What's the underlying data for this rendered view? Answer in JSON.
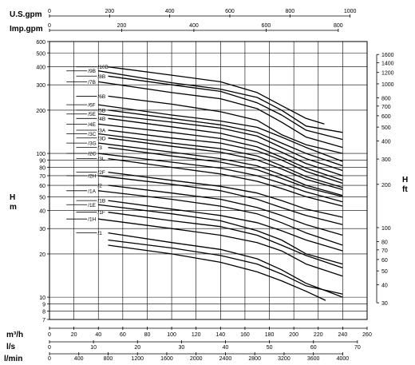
{
  "chart_data": {
    "type": "line",
    "log_scale": {
      "y_left": true,
      "y_right": true
    },
    "grid": true,
    "top_axes": [
      {
        "label": "U.S.gpm",
        "ticks": [
          0,
          200,
          400,
          600,
          800,
          1000
        ],
        "range": [
          0,
          1056.7
        ]
      },
      {
        "label": "Imp.gpm",
        "ticks": [
          0,
          200,
          400,
          600,
          800
        ],
        "range": [
          0,
          879.9
        ]
      }
    ],
    "bottom_axes": [
      {
        "label": "m³/h",
        "ticks": [
          0,
          20,
          40,
          60,
          80,
          100,
          120,
          140,
          160,
          180,
          200,
          220,
          240,
          260
        ],
        "range": [
          0,
          260
        ]
      },
      {
        "label": "l/s",
        "ticks": [
          0,
          10,
          20,
          30,
          40,
          50,
          60,
          70
        ],
        "range": [
          0,
          72.2
        ]
      },
      {
        "label": "l/min",
        "ticks": [
          0,
          400,
          800,
          1200,
          1600,
          2000,
          2400,
          2800,
          3200,
          3600,
          4000
        ],
        "range": [
          0,
          4333
        ]
      }
    ],
    "y_left": {
      "label": "H\nm",
      "ticks": [
        7,
        8,
        9,
        10,
        20,
        30,
        40,
        50,
        60,
        70,
        80,
        90,
        100,
        200,
        300,
        400,
        500,
        600
      ],
      "range": [
        7,
        600
      ]
    },
    "y_right": {
      "label": "H\nft",
      "ticks": [
        30,
        40,
        50,
        60,
        70,
        80,
        100,
        200,
        300,
        400,
        500,
        600,
        700,
        800,
        1000,
        1200,
        1400,
        1600
      ],
      "range": [
        22.97,
        1968.5
      ]
    },
    "series": [
      {
        "name": "/10B",
        "points": [
          [
            48,
            400
          ],
          [
            100,
            350
          ],
          [
            140,
            315
          ],
          [
            170,
            265
          ],
          [
            190,
            215
          ],
          [
            210,
            175
          ],
          [
            225,
            160
          ]
        ]
      },
      {
        "name": "/9B",
        "points": [
          [
            40,
            375
          ],
          [
            100,
            310
          ],
          [
            140,
            280
          ],
          [
            170,
            245
          ],
          [
            190,
            200
          ],
          [
            210,
            155
          ],
          [
            240,
            140
          ]
        ]
      },
      {
        "name": "/8B",
        "points": [
          [
            48,
            345
          ],
          [
            100,
            300
          ],
          [
            140,
            270
          ],
          [
            170,
            225
          ],
          [
            190,
            185
          ],
          [
            210,
            145
          ],
          [
            240,
            125
          ]
        ]
      },
      {
        "name": "/7B",
        "points": [
          [
            40,
            315
          ],
          [
            100,
            265
          ],
          [
            140,
            240
          ],
          [
            170,
            205
          ],
          [
            190,
            165
          ],
          [
            210,
            130
          ],
          [
            240,
            110
          ]
        ]
      },
      {
        "name": "/6B",
        "points": [
          [
            48,
            250
          ],
          [
            100,
            220
          ],
          [
            140,
            195
          ],
          [
            170,
            170
          ],
          [
            190,
            135
          ],
          [
            210,
            115
          ],
          [
            240,
            100
          ]
        ]
      },
      {
        "name": "/6F",
        "points": [
          [
            40,
            218
          ],
          [
            100,
            185
          ],
          [
            140,
            168
          ],
          [
            170,
            152
          ],
          [
            190,
            130
          ],
          [
            210,
            110
          ],
          [
            240,
            88
          ]
        ]
      },
      {
        "name": "/5B",
        "points": [
          [
            48,
            200
          ],
          [
            100,
            175
          ],
          [
            140,
            158
          ],
          [
            170,
            140
          ],
          [
            190,
            118
          ],
          [
            210,
            100
          ],
          [
            240,
            82
          ]
        ]
      },
      {
        "name": "/5E",
        "points": [
          [
            40,
            188
          ],
          [
            100,
            165
          ],
          [
            140,
            150
          ],
          [
            170,
            132
          ],
          [
            190,
            110
          ],
          [
            210,
            92
          ],
          [
            240,
            76
          ]
        ]
      },
      {
        "name": "/4B",
        "points": [
          [
            48,
            175
          ],
          [
            100,
            153
          ],
          [
            140,
            138
          ],
          [
            170,
            120
          ],
          [
            190,
            102
          ],
          [
            210,
            85
          ],
          [
            240,
            70
          ]
        ]
      },
      {
        "name": "/4E",
        "points": [
          [
            40,
            160
          ],
          [
            100,
            140
          ],
          [
            140,
            127
          ],
          [
            170,
            111
          ],
          [
            190,
            94
          ],
          [
            210,
            79
          ],
          [
            240,
            65
          ]
        ]
      },
      {
        "name": "/3A",
        "points": [
          [
            48,
            145
          ],
          [
            100,
            128
          ],
          [
            140,
            118
          ],
          [
            170,
            104
          ],
          [
            190,
            90
          ],
          [
            210,
            75
          ],
          [
            240,
            62
          ]
        ]
      },
      {
        "name": "/3C",
        "points": [
          [
            40,
            137
          ],
          [
            100,
            118
          ],
          [
            140,
            108
          ],
          [
            170,
            96
          ],
          [
            190,
            82
          ],
          [
            210,
            69
          ],
          [
            240,
            58
          ]
        ]
      },
      {
        "name": "/3D",
        "points": [
          [
            48,
            128
          ],
          [
            100,
            112
          ],
          [
            140,
            102
          ],
          [
            170,
            90
          ],
          [
            190,
            78
          ],
          [
            210,
            66
          ],
          [
            240,
            56
          ]
        ]
      },
      {
        "name": "/3G",
        "points": [
          [
            40,
            118
          ],
          [
            100,
            102
          ],
          [
            140,
            92
          ],
          [
            170,
            82
          ],
          [
            190,
            71
          ],
          [
            210,
            60
          ],
          [
            240,
            51
          ]
        ]
      },
      {
        "name": "/3",
        "points": [
          [
            48,
            110
          ],
          [
            100,
            96
          ],
          [
            140,
            87
          ],
          [
            170,
            77
          ],
          [
            190,
            67
          ],
          [
            210,
            58
          ],
          [
            240,
            50
          ]
        ]
      },
      {
        "name": "/2C",
        "points": [
          [
            40,
            100
          ],
          [
            100,
            87
          ],
          [
            140,
            79
          ],
          [
            170,
            70
          ],
          [
            190,
            62
          ],
          [
            210,
            54
          ],
          [
            240,
            46
          ]
        ]
      },
      {
        "name": "/3L",
        "points": [
          [
            48,
            92
          ],
          [
            100,
            80
          ],
          [
            140,
            72
          ],
          [
            170,
            64
          ],
          [
            190,
            57
          ],
          [
            210,
            50
          ],
          [
            240,
            43
          ]
        ]
      },
      {
        "name": "/2F",
        "points": [
          [
            48,
            74
          ],
          [
            100,
            65
          ],
          [
            140,
            59
          ],
          [
            170,
            53
          ],
          [
            190,
            47
          ],
          [
            210,
            41
          ],
          [
            240,
            36
          ]
        ]
      },
      {
        "name": "/2H",
        "points": [
          [
            40,
            70
          ],
          [
            100,
            61
          ],
          [
            140,
            55
          ],
          [
            170,
            48
          ],
          [
            190,
            42
          ],
          [
            210,
            37
          ],
          [
            240,
            32
          ]
        ]
      },
      {
        "name": "/2",
        "points": [
          [
            48,
            60
          ],
          [
            100,
            53
          ],
          [
            140,
            48
          ],
          [
            170,
            42
          ],
          [
            190,
            37
          ],
          [
            210,
            32
          ],
          [
            240,
            27
          ]
        ]
      },
      {
        "name": "/1A",
        "points": [
          [
            40,
            55
          ],
          [
            100,
            48
          ],
          [
            140,
            43
          ],
          [
            170,
            38
          ],
          [
            190,
            33
          ],
          [
            210,
            28
          ],
          [
            240,
            23
          ]
        ]
      },
      {
        "name": "/1B",
        "points": [
          [
            48,
            47
          ],
          [
            100,
            41
          ],
          [
            140,
            37
          ],
          [
            170,
            33
          ],
          [
            190,
            29
          ],
          [
            210,
            25
          ],
          [
            240,
            21
          ]
        ]
      },
      {
        "name": "/1E",
        "points": [
          [
            40,
            44
          ],
          [
            100,
            38
          ],
          [
            140,
            34
          ],
          [
            170,
            29
          ],
          [
            190,
            25
          ],
          [
            210,
            20
          ],
          [
            240,
            17
          ]
        ]
      },
      {
        "name": "/1F",
        "points": [
          [
            48,
            39
          ],
          [
            100,
            34
          ],
          [
            140,
            31
          ],
          [
            170,
            27
          ],
          [
            190,
            23
          ],
          [
            210,
            19.5
          ],
          [
            240,
            16
          ]
        ]
      },
      {
        "name": "/1H",
        "points": [
          [
            40,
            35
          ],
          [
            100,
            30
          ],
          [
            140,
            27
          ],
          [
            170,
            24
          ],
          [
            190,
            21
          ],
          [
            210,
            17
          ],
          [
            240,
            14
          ]
        ]
      },
      {
        "name": "/1",
        "points": [
          [
            48,
            28
          ],
          [
            100,
            24
          ],
          [
            140,
            21.5
          ],
          [
            170,
            18.5
          ],
          [
            190,
            15.5
          ],
          [
            210,
            12.5
          ],
          [
            240,
            10
          ]
        ]
      }
    ],
    "extra_curves": [
      {
        "points": [
          [
            48,
            23
          ],
          [
            100,
            20
          ],
          [
            140,
            17.5
          ],
          [
            170,
            15
          ],
          [
            190,
            13
          ],
          [
            210,
            11
          ],
          [
            226,
            9.5
          ]
        ]
      },
      {
        "points": [
          [
            48,
            25
          ],
          [
            100,
            22
          ],
          [
            140,
            19.5
          ],
          [
            170,
            17
          ],
          [
            190,
            14.5
          ],
          [
            210,
            12
          ],
          [
            240,
            10.5
          ]
        ]
      }
    ]
  }
}
